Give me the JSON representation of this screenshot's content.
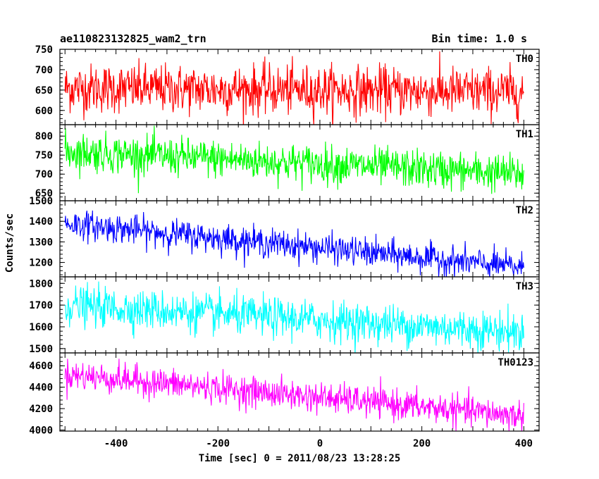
{
  "header": {
    "title": "ae110823132825_wam2_trn",
    "bin_time": "Bin time: 1.0 s"
  },
  "axes": {
    "xlabel": "Time [sec] 0 = 2011/08/23 13:28:25",
    "ylabel": "Counts/sec"
  },
  "chart_data": {
    "type": "line",
    "title": "ae110823132825_wam2_trn",
    "xlabel": "Time [sec] 0 = 2011/08/23 13:28:25",
    "ylabel": "Counts/sec",
    "xlim": [
      -510,
      430
    ],
    "x_ticks": [
      -400,
      -200,
      0,
      200,
      400
    ],
    "x_range": [
      -500,
      400
    ],
    "bin_time_s": 1.0,
    "grid": false,
    "legend": "panel labels top-right",
    "panels": [
      {
        "name": "TH0",
        "color": "#ff0000",
        "ylim": [
          565,
          750
        ],
        "yticks": [
          600,
          650,
          700,
          750
        ],
        "trend_start": 655,
        "trend_end": 645,
        "noise_sd": 30
      },
      {
        "name": "TH1",
        "color": "#00ff00",
        "ylim": [
          630,
          830
        ],
        "yticks": [
          650,
          700,
          750,
          800
        ],
        "trend_start": 760,
        "trend_end": 700,
        "noise_sd": 25
      },
      {
        "name": "TH2",
        "color": "#0000ff",
        "ylim": [
          1130,
          1500
        ],
        "yticks": [
          1200,
          1300,
          1400,
          1500
        ],
        "trend_start": 1390,
        "trend_end": 1175,
        "noise_sd": 35
      },
      {
        "name": "TH3",
        "color": "#00ffff",
        "ylim": [
          1480,
          1830
        ],
        "yticks": [
          1500,
          1600,
          1700,
          1800
        ],
        "trend_start": 1700,
        "trend_end": 1575,
        "noise_sd": 45
      },
      {
        "name": "TH0123",
        "color": "#ff00ff",
        "ylim": [
          3990,
          4720
        ],
        "yticks": [
          4000,
          4200,
          4400,
          4600
        ],
        "trend_start": 4520,
        "trend_end": 4130,
        "noise_sd": 70
      }
    ]
  }
}
